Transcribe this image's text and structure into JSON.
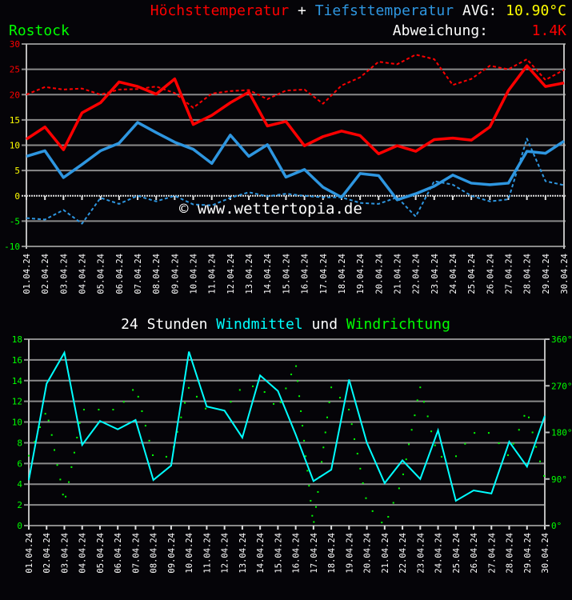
{
  "header": {
    "title_max": "Höchsttemperatur",
    "plus": "+",
    "title_min": "Tiefsttemperatur",
    "avg_label": "AVG:",
    "avg_value": "10.90°C",
    "location": "Rostock",
    "deviation_label": "Abweichung:",
    "deviation_value": "1.4K"
  },
  "watermark": "© www.wettertopia.de",
  "colors": {
    "background": "#050408",
    "max": "#ff0000",
    "min": "#2e96e0",
    "wind": "#00ffff",
    "direction": "#00ff00",
    "avg": "#ffff00",
    "grid": "#8a8a8a"
  },
  "chart_data": [
    {
      "type": "line",
      "title": "Höchsttemperatur + Tiefsttemperatur",
      "categories": [
        "01.04.24",
        "02.04.24",
        "03.04.24",
        "04.04.24",
        "05.04.24",
        "06.04.24",
        "07.04.24",
        "08.04.24",
        "09.04.24",
        "10.04.24",
        "11.04.24",
        "12.04.24",
        "13.04.24",
        "14.04.24",
        "15.04.24",
        "16.04.24",
        "17.04.24",
        "18.04.24",
        "19.04.24",
        "20.04.24",
        "21.04.24",
        "22.04.24",
        "23.04.24",
        "24.04.24",
        "25.04.24",
        "26.04.24",
        "27.04.24",
        "28.04.24",
        "29.04.24",
        "30.04.24"
      ],
      "ylim": [
        -10,
        30
      ],
      "yticks": [
        -10,
        -5,
        0,
        5,
        10,
        15,
        20,
        25,
        30
      ],
      "grid": true,
      "series": [
        {
          "name": "Höchsttemperatur",
          "style": "solid",
          "color": "#ff0000",
          "values": [
            11.2,
            13.6,
            9.1,
            16.4,
            18.4,
            22.5,
            21.6,
            20.1,
            23.1,
            14.1,
            15.9,
            18.4,
            20.5,
            13.8,
            14.7,
            9.9,
            11.7,
            12.8,
            11.9,
            8.3,
            9.9,
            8.8,
            11.1,
            11.4,
            11.0,
            13.6,
            20.8,
            25.7,
            21.6,
            22.3
          ]
        },
        {
          "style": "dashed",
          "color": "#ff0000",
          "values": [
            20.0,
            21.5,
            21.0,
            21.2,
            20.0,
            21.0,
            21.1,
            21.6,
            20.3,
            17.4,
            20.2,
            20.7,
            20.9,
            19.1,
            20.8,
            21.0,
            18.2,
            21.8,
            23.4,
            26.5,
            26.0,
            27.9,
            27.0,
            21.9,
            23.1,
            25.7,
            25.0,
            27.0,
            22.9,
            24.9
          ]
        },
        {
          "name": "Tiefsttemperatur",
          "style": "solid",
          "color": "#2e96e0",
          "values": [
            7.8,
            8.9,
            3.6,
            6.2,
            8.9,
            10.4,
            14.5,
            12.5,
            10.6,
            9.2,
            6.4,
            12.0,
            7.8,
            10.1,
            3.7,
            5.2,
            1.7,
            -0.3,
            4.4,
            4.0,
            -0.8,
            0.4,
            1.9,
            4.1,
            2.5,
            2.2,
            2.5,
            8.8,
            8.4,
            10.8
          ]
        },
        {
          "style": "dashed",
          "color": "#2e96e0",
          "values": [
            -4.4,
            -4.7,
            -2.8,
            -5.5,
            -0.4,
            -1.6,
            0.0,
            -1.1,
            0.0,
            -1.7,
            -1.9,
            -0.4,
            0.7,
            -0.1,
            0.4,
            0.0,
            -0.3,
            -0.3,
            -1.4,
            -1.6,
            -0.3,
            -4.1,
            2.9,
            2.2,
            0.0,
            -1.1,
            -0.7,
            11.3,
            2.9,
            2.1
          ]
        }
      ]
    },
    {
      "type": "line",
      "title_parts": [
        "24 Stunden",
        "Windmittel",
        "und",
        "Windrichtung"
      ],
      "categories": [
        "01.04.24",
        "02.04.24",
        "03.04.24",
        "04.04.24",
        "05.04.24",
        "06.04.24",
        "07.04.24",
        "08.04.24",
        "09.04.24",
        "10.04.24",
        "11.04.24",
        "12.04.24",
        "13.04.24",
        "14.04.24",
        "15.04.24",
        "16.04.24",
        "17.04.24",
        "18.04.24",
        "19.04.24",
        "20.04.24",
        "21.04.24",
        "22.04.24",
        "23.04.24",
        "24.04.24",
        "25.04.24",
        "26.04.24",
        "27.04.24",
        "28.04.24",
        "29.04.24",
        "30.04.24"
      ],
      "ylim": [
        0,
        18
      ],
      "yticks": [
        0,
        2,
        4,
        6,
        8,
        10,
        12,
        14,
        16,
        18
      ],
      "y2lim": [
        0,
        360
      ],
      "y2ticks": [
        "0°",
        "90°",
        "180°",
        "270°",
        "360°"
      ],
      "grid": true,
      "series": [
        {
          "name": "Windmittel",
          "type": "line",
          "color": "#00ffff",
          "values": [
            4.4,
            13.7,
            16.7,
            7.8,
            10.1,
            9.3,
            10.2,
            4.4,
            5.8,
            16.8,
            11.5,
            11.1,
            8.5,
            14.5,
            13.0,
            8.8,
            4.3,
            5.4,
            14.1,
            8.0,
            4.1,
            6.3,
            4.5,
            9.2,
            2.4,
            3.4,
            3.1,
            8.1,
            5.7,
            10.6
          ]
        },
        {
          "name": "Windrichtung",
          "type": "scatter",
          "color": "#00ff00",
          "axis": "right",
          "points_day_deg": [
            [
              1.0,
              135
            ],
            [
              1.33,
              162
            ],
            [
              1.63,
              190
            ],
            [
              1.93,
              216
            ],
            [
              2.11,
              203
            ],
            [
              2.29,
              175
            ],
            [
              2.44,
              146
            ],
            [
              2.6,
              117
            ],
            [
              2.77,
              89
            ],
            [
              2.92,
              60
            ],
            [
              3.07,
              56
            ],
            [
              3.25,
              84
            ],
            [
              3.4,
              113
            ],
            [
              3.56,
              141
            ],
            [
              3.71,
              170
            ],
            [
              3.86,
              198
            ],
            [
              4.1,
              224
            ],
            [
              4.93,
              224
            ],
            [
              5.74,
              224
            ],
            [
              6.34,
              239
            ],
            [
              6.85,
              262
            ],
            [
              7.15,
              249
            ],
            [
              7.36,
              221
            ],
            [
              7.56,
              193
            ],
            [
              7.77,
              164
            ],
            [
              7.97,
              136
            ],
            [
              8.73,
              133
            ],
            [
              9.14,
              152
            ],
            [
              9.35,
              181
            ],
            [
              9.56,
              209
            ],
            [
              9.77,
              237
            ],
            [
              9.99,
              266
            ],
            [
              10.44,
              249
            ],
            [
              10.94,
              226
            ],
            [
              11.75,
              224
            ],
            [
              12.35,
              239
            ],
            [
              12.86,
              262
            ],
            [
              13.59,
              269
            ],
            [
              14.25,
              258
            ],
            [
              14.76,
              235
            ],
            [
              15.15,
              238
            ],
            [
              15.45,
              265
            ],
            [
              15.75,
              292
            ],
            [
              16.02,
              308
            ],
            [
              16.11,
              279
            ],
            [
              16.2,
              250
            ],
            [
              16.29,
              221
            ],
            [
              16.38,
              193
            ],
            [
              16.47,
              164
            ],
            [
              16.56,
              134
            ],
            [
              16.66,
              106
            ],
            [
              16.75,
              77
            ],
            [
              16.84,
              48
            ],
            [
              16.93,
              19
            ],
            [
              17.02,
              7
            ],
            [
              17.14,
              36
            ],
            [
              17.25,
              65
            ],
            [
              17.35,
              94
            ],
            [
              17.46,
              123
            ],
            [
              17.56,
              151
            ],
            [
              17.67,
              180
            ],
            [
              17.77,
              209
            ],
            [
              17.89,
              238
            ],
            [
              18.0,
              267
            ],
            [
              18.49,
              247
            ],
            [
              18.99,
              224
            ],
            [
              19.15,
              196
            ],
            [
              19.3,
              167
            ],
            [
              19.47,
              139
            ],
            [
              19.63,
              110
            ],
            [
              19.78,
              82
            ],
            [
              19.95,
              53
            ],
            [
              20.32,
              28
            ],
            [
              20.84,
              6
            ],
            [
              21.2,
              17
            ],
            [
              21.49,
              44
            ],
            [
              21.81,
              72
            ],
            [
              22.04,
              99
            ],
            [
              22.21,
              128
            ],
            [
              22.36,
              157
            ],
            [
              22.52,
              185
            ],
            [
              22.69,
              213
            ],
            [
              22.84,
              242
            ],
            [
              23.0,
              267
            ],
            [
              23.21,
              239
            ],
            [
              23.42,
              211
            ],
            [
              23.62,
              182
            ],
            [
              23.83,
              155
            ],
            [
              24.2,
              133
            ],
            [
              25.01,
              134
            ],
            [
              25.52,
              158
            ],
            [
              26.05,
              179
            ],
            [
              26.85,
              179
            ],
            [
              27.42,
              159
            ],
            [
              27.93,
              136
            ],
            [
              28.23,
              158
            ],
            [
              28.55,
              185
            ],
            [
              28.85,
              212
            ],
            [
              29.1,
              209
            ],
            [
              29.31,
              180
            ],
            [
              29.51,
              152
            ],
            [
              29.73,
              124
            ],
            [
              29.96,
              96
            ]
          ]
        }
      ]
    }
  ]
}
